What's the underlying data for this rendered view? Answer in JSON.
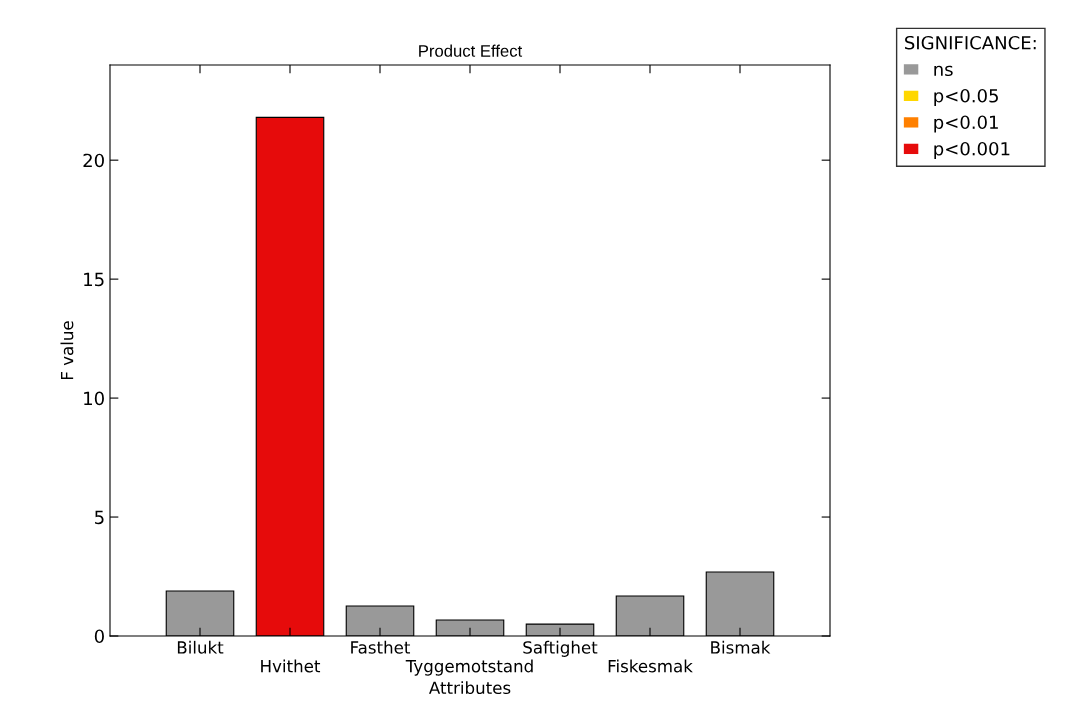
{
  "chart_data": {
    "type": "bar",
    "title": "Product Effect",
    "xlabel": "Attributes",
    "ylabel": "F value",
    "categories": [
      "Bilukt",
      "Hvithet",
      "Fasthet",
      "Tyggemotstand",
      "Saftighet",
      "Fiskesmak",
      "Bismak"
    ],
    "series": [
      {
        "name": "ns",
        "color": "#999999",
        "values": [
          1.89,
          null,
          1.26,
          0.67,
          0.5,
          1.68,
          2.69
        ]
      },
      {
        "name": "p<0.05",
        "color": "#ffd700",
        "values": [
          null,
          null,
          null,
          null,
          null,
          null,
          null
        ]
      },
      {
        "name": "p<0.01",
        "color": "#ff8000",
        "values": [
          null,
          null,
          null,
          null,
          null,
          null,
          null
        ]
      },
      {
        "name": "p<0.001",
        "color": "#e60b0b",
        "values": [
          null,
          21.8,
          null,
          null,
          null,
          null,
          null
        ]
      }
    ],
    "legend_title": "SIGNIFICANCE:",
    "legend": "top right",
    "ylim": [
      0,
      24
    ],
    "yticks": [
      0,
      5,
      10,
      15,
      20
    ],
    "grid": false
  }
}
